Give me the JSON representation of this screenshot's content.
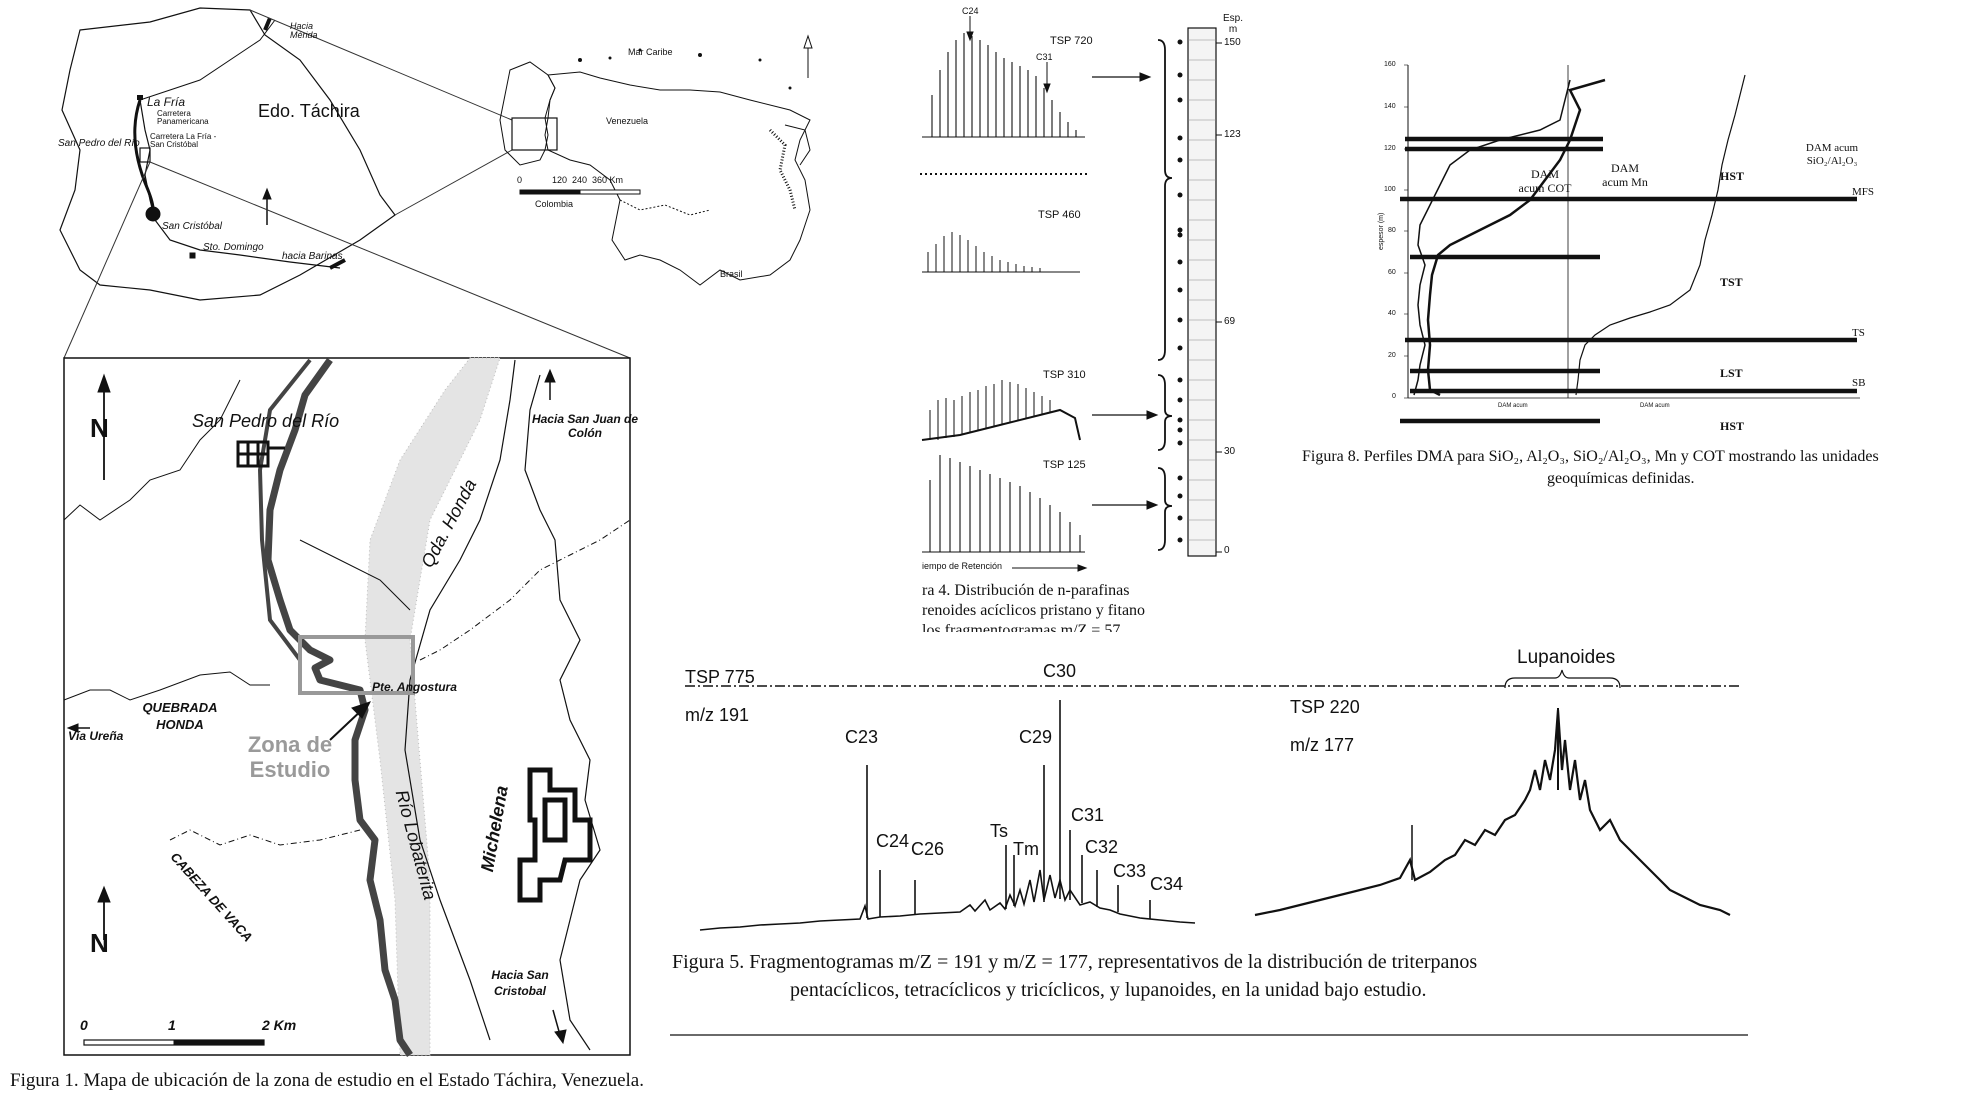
{
  "figure1": {
    "caption": "Figura 1. Mapa de ubicación de la zona de estudio en el Estado Táchira, Venezuela.",
    "state_map": {
      "state": "Edo. Táchira",
      "places": {
        "hacia_merida": "Hacia Mérida",
        "la_fria": "La Fría",
        "carretera": "Carretera Panamericana",
        "san_pedro": "San Pedro del Río",
        "carretera_lf_sc": "Carretera La Fría - San Cristóbal",
        "san_cristobal": "San Cristóbal",
        "sto_domingo": "Sto. Domingo",
        "hacia_barinas": "hacia Barinas"
      }
    },
    "country_map": {
      "mar_caribe": "Mar Caribe",
      "venezuela": "Venezuela",
      "colombia": "Colombia",
      "brasil": "Brasil",
      "scale": [
        "0",
        "120",
        "240",
        "360 Km"
      ]
    },
    "detail_map": {
      "north": "N",
      "town": "San Pedro del Río",
      "hacia_colon": "Hacia San Juan de Colón",
      "qda_honda": "Qda. Honda",
      "quebrada_honda": "QUEBRADA HONDA",
      "via_urena": "Vía Ureña",
      "pte_angostura": "Pte. Angostura",
      "zona": "Zona de Estudio",
      "rio": "Río Lobaterita",
      "michelena": "Michelena",
      "cabeza": "CABEZA DE VACA",
      "hacia_sc": "Hacia San Cristobal",
      "scale": [
        "0",
        "1",
        "2 Km"
      ]
    }
  },
  "figure4": {
    "caption_lines": [
      "ra 4. Distribución de n-parafinas",
      "renoides acíclicos pristano y fitano",
      "los fragmentogramas m/Z = 57"
    ],
    "samples": [
      "TSP 720",
      "TSP 460",
      "TSP 310",
      "TSP 125"
    ],
    "peak_labels": [
      "C24",
      "C31"
    ],
    "x_axis": "iempo de Retención",
    "column_title": "Esp. m",
    "depth_ticks": [
      "150",
      "123",
      "69",
      "30",
      "0"
    ]
  },
  "figure8": {
    "caption_lines": [
      "Figura 8. Perfiles DMA para SiO₂, Al₂O₃, SiO₂/Al₂O₃, Mn y COT mostrando las unidades",
      "geoquímicas definidas."
    ],
    "y_axis": "espesor (m)",
    "y_ticks": [
      "160",
      "140",
      "120",
      "100",
      "80",
      "60",
      "40",
      "20",
      "0"
    ],
    "curve_labels": [
      "DAM acum COT",
      "DAM acum Mn",
      "DAM acum SiO₂/Al₂O₃"
    ],
    "units": [
      "HST",
      "MFS",
      "TST",
      "TS",
      "LST",
      "SB",
      "HST"
    ],
    "x_axis": [
      "DAM acum",
      "DAM acum"
    ]
  },
  "figure5": {
    "caption_lines": [
      "Figura 5. Fragmentogramas m/Z = 191 y m/Z = 177, representativos de la distribución de triterpanos",
      "pentacíclicos, tetracíclicos y tricíclicos, y lupanoides, en la unidad bajo estudio."
    ],
    "left_sample": "TSP 775",
    "left_mz": "m/z 191",
    "right_sample": "TSP 220",
    "right_mz": "m/z 177",
    "group_label": "Lupanoides",
    "peaks": [
      "C23",
      "C24",
      "C26",
      "Ts",
      "Tm",
      "C29",
      "C30",
      "C31",
      "C32",
      "C33",
      "C34"
    ]
  }
}
